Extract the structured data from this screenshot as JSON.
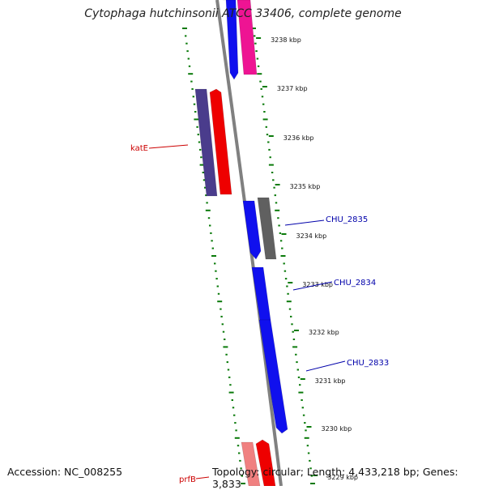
{
  "title": "Cytophaga hutchinsonii ATCC 33406, complete genome",
  "accession_text": "Accession: NC_008255",
  "summary_text": "Topology: circular; Length: 4,433,218 bp; Genes: 3,833",
  "colors": {
    "backbone": "#808080",
    "gc_skew": "#0a7a0a",
    "gene_label_red": "#cc0000",
    "gene_label_blue": "#0000aa"
  },
  "tick_labels": [
    {
      "label": "3238 kbp"
    },
    {
      "label": "3237 kbp"
    },
    {
      "label": "3236 kbp"
    },
    {
      "label": "3235 kbp"
    },
    {
      "label": "3234 kbp"
    },
    {
      "label": "3233 kbp"
    },
    {
      "label": "3232 kbp"
    },
    {
      "label": "3231 kbp"
    },
    {
      "label": "3230 kbp"
    },
    {
      "label": "3229 kbp"
    }
  ],
  "genes": [
    {
      "name": "",
      "color": "#1010ee"
    },
    {
      "name": "",
      "color": "#ee1493"
    },
    {
      "name": "",
      "color": "#4a3c8c"
    },
    {
      "name": "",
      "color": "#ee0000"
    },
    {
      "name": "",
      "color": "#1010ee"
    },
    {
      "name": "",
      "color": "#606060"
    },
    {
      "name": "",
      "color": "#1010ee"
    },
    {
      "name": "",
      "color": "#1010ee"
    },
    {
      "name": "",
      "color": "#f08080"
    },
    {
      "name": "",
      "color": "#ee0000"
    }
  ],
  "gene_labels": [
    {
      "text": "katE",
      "color": "#cc0000"
    },
    {
      "text": "CHU_2835",
      "color": "#0000aa"
    },
    {
      "text": "CHU_2834",
      "color": "#0000aa"
    },
    {
      "text": "CHU_2833",
      "color": "#0000aa"
    },
    {
      "text": "prfB",
      "color": "#cc0000"
    }
  ]
}
